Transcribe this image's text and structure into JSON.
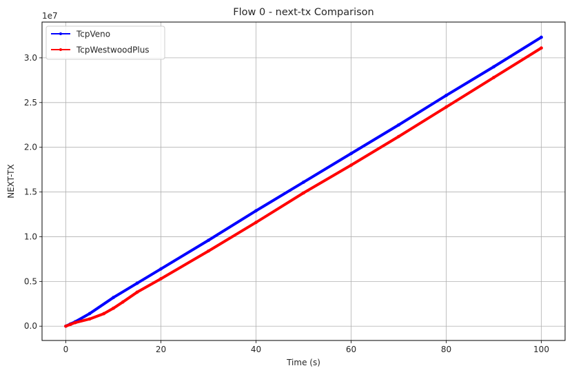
{
  "chart_data": {
    "type": "line",
    "title": "Flow 0 - next-tx Comparison",
    "xlabel": "Time (s)",
    "ylabel": "NEXT-TX",
    "y_offset_label": "1e7",
    "y_scale": 10000000,
    "xlim": [
      -5,
      105
    ],
    "ylim": [
      -1600000,
      34000000
    ],
    "xticks": [
      0,
      20,
      40,
      60,
      80,
      100
    ],
    "xtick_labels": [
      "0",
      "20",
      "40",
      "60",
      "80",
      "100"
    ],
    "yticks": [
      0,
      5000000,
      10000000,
      15000000,
      20000000,
      25000000,
      30000000
    ],
    "ytick_labels": [
      "0.0",
      "0.5",
      "1.0",
      "1.5",
      "2.0",
      "2.5",
      "3.0"
    ],
    "grid": true,
    "legend_position": "top-left",
    "series": [
      {
        "name": "TcpVeno",
        "color": "#0000ff",
        "x": [
          0,
          1,
          2,
          5,
          10,
          15,
          20,
          30,
          40,
          50,
          60,
          70,
          80,
          90,
          100
        ],
        "y": [
          0,
          250000,
          500000,
          1400000,
          3200000,
          4800000,
          6400000,
          9600000,
          12900000,
          16100000,
          19300000,
          22500000,
          25800000,
          29000000,
          32300000
        ]
      },
      {
        "name": "TcpWestwoodPlus",
        "color": "#ff0000",
        "x": [
          0,
          1,
          2,
          5,
          8,
          10,
          12,
          15,
          20,
          30,
          40,
          50,
          60,
          70,
          80,
          90,
          100
        ],
        "y": [
          0,
          200000,
          400000,
          800000,
          1400000,
          2000000,
          2700000,
          3800000,
          5300000,
          8400000,
          11600000,
          14900000,
          18000000,
          21200000,
          24500000,
          27800000,
          31100000
        ]
      }
    ]
  }
}
